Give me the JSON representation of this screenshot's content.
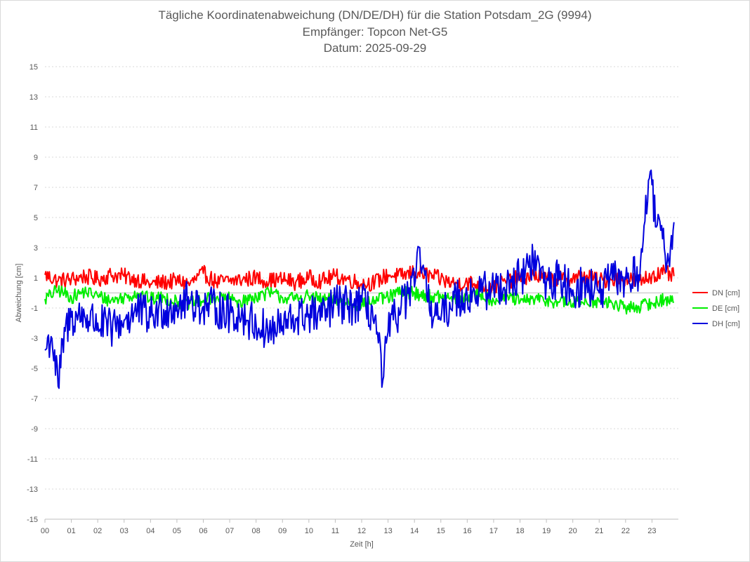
{
  "chart_data": {
    "type": "line",
    "title": "Tägliche Koordinatenabweichung (DN/DE/DH) für die Station Potsdam_2G (9994)",
    "subtitle_1": "Empfänger: Topcon Net-G5",
    "subtitle_2": "Datum: 2025-09-29",
    "xlabel": "Zeit [h]",
    "ylabel": "Abweichung [cm]",
    "xlim": [
      0,
      24
    ],
    "ylim": [
      -15,
      15
    ],
    "x_ticks": [
      "00",
      "01",
      "02",
      "03",
      "04",
      "05",
      "06",
      "07",
      "08",
      "09",
      "10",
      "11",
      "12",
      "13",
      "14",
      "15",
      "16",
      "17",
      "18",
      "19",
      "20",
      "21",
      "22",
      "23"
    ],
    "y_ticks": [
      "15",
      "13",
      "11",
      "9",
      "7",
      "5",
      "3",
      "1",
      "-1",
      "-3",
      "-5",
      "-7",
      "-9",
      "-11",
      "-13",
      "-15"
    ],
    "grid": true,
    "legend_position": "right",
    "series": [
      {
        "name": "DN [cm]",
        "color": "#ff0000",
        "x": [
          0,
          0.5,
          1,
          1.5,
          2,
          2.5,
          3,
          3.5,
          4,
          4.5,
          5,
          5.5,
          6,
          6.5,
          7,
          7.5,
          8,
          8.5,
          9,
          9.5,
          10,
          10.5,
          11,
          11.5,
          12,
          12.5,
          13,
          13.5,
          14,
          14.5,
          15,
          15.5,
          16,
          16.5,
          17,
          17.5,
          18,
          18.5,
          19,
          19.5,
          20,
          20.5,
          21,
          21.5,
          22,
          22.5,
          23,
          23.5,
          23.85
        ],
        "y": [
          1.2,
          0.8,
          0.9,
          1.1,
          0.9,
          1.2,
          1.1,
          0.9,
          0.6,
          0.7,
          0.8,
          0.6,
          1.3,
          0.7,
          0.8,
          0.9,
          1.0,
          0.8,
          0.9,
          0.7,
          1.0,
          0.8,
          1.1,
          0.9,
          0.6,
          0.7,
          1.2,
          1.1,
          1.4,
          1.2,
          0.9,
          0.6,
          0.7,
          0.5,
          0.4,
          0.8,
          1.0,
          1.2,
          0.9,
          0.9,
          1.0,
          1.1,
          0.8,
          0.9,
          1.0,
          0.7,
          1.2,
          1.3,
          1.1
        ]
      },
      {
        "name": "DE [cm]",
        "color": "#00ee00",
        "x": [
          0,
          0.5,
          1,
          1.5,
          2,
          2.5,
          3,
          3.5,
          4,
          4.5,
          5,
          5.5,
          6,
          6.5,
          7,
          7.5,
          8,
          8.5,
          9,
          9.5,
          10,
          10.5,
          11,
          11.5,
          12,
          12.5,
          13,
          13.5,
          14,
          14.5,
          15,
          15.5,
          16,
          16.5,
          17,
          17.5,
          18,
          18.5,
          19,
          19.5,
          20,
          20.5,
          21,
          21.5,
          22,
          22.5,
          23,
          23.5,
          23.85
        ],
        "y": [
          -0.4,
          0.2,
          -0.3,
          0.1,
          -0.2,
          -0.5,
          -0.3,
          0.0,
          -0.4,
          -0.3,
          -0.6,
          -0.7,
          -0.5,
          -0.3,
          -0.4,
          -0.6,
          -0.2,
          0.0,
          -0.3,
          -0.4,
          -0.2,
          -0.5,
          -0.4,
          -0.6,
          -0.8,
          -0.5,
          -0.3,
          0.1,
          0.0,
          -0.2,
          -0.3,
          -0.4,
          -0.3,
          -0.1,
          -0.5,
          -0.2,
          -0.6,
          -0.4,
          -0.5,
          -0.6,
          -0.7,
          -0.5,
          -0.6,
          -0.7,
          -1.0,
          -0.9,
          -0.7,
          -0.4,
          -0.6
        ]
      },
      {
        "name": "DH [cm]",
        "color": "#0000dd",
        "x": [
          0,
          0.25,
          0.5,
          0.75,
          1,
          1.5,
          2,
          2.5,
          3,
          3.5,
          4,
          4.5,
          5,
          5.5,
          6,
          6.5,
          7,
          7.5,
          8,
          8.5,
          9,
          9.5,
          10,
          10.5,
          11,
          11.5,
          12,
          12.5,
          12.8,
          13,
          13.5,
          14,
          14.2,
          14.5,
          15,
          15.5,
          16,
          16.5,
          17,
          17.5,
          18,
          18.5,
          19,
          19.5,
          20,
          20.5,
          21,
          21.5,
          22,
          22.5,
          22.9,
          23.2,
          23.5,
          23.7,
          23.85
        ],
        "y": [
          -3.8,
          -2.8,
          -6.2,
          -2.6,
          -1.6,
          -1.5,
          -2.0,
          -2.4,
          -1.8,
          -1.2,
          -1.6,
          -1.1,
          -0.8,
          -0.5,
          -0.9,
          -1.0,
          -1.4,
          -1.5,
          -2.1,
          -2.6,
          -2.2,
          -1.7,
          -1.4,
          -1.6,
          -0.7,
          -0.9,
          -0.6,
          -1.6,
          -5.8,
          -2.6,
          -0.8,
          0.4,
          3.0,
          -0.6,
          -1.8,
          -0.3,
          -0.2,
          0.1,
          0.3,
          0.6,
          1.0,
          2.2,
          0.7,
          0.9,
          0.2,
          0.5,
          0.0,
          0.9,
          0.9,
          1.2,
          7.6,
          4.5,
          2.5,
          3.0,
          4.9
        ]
      }
    ]
  }
}
